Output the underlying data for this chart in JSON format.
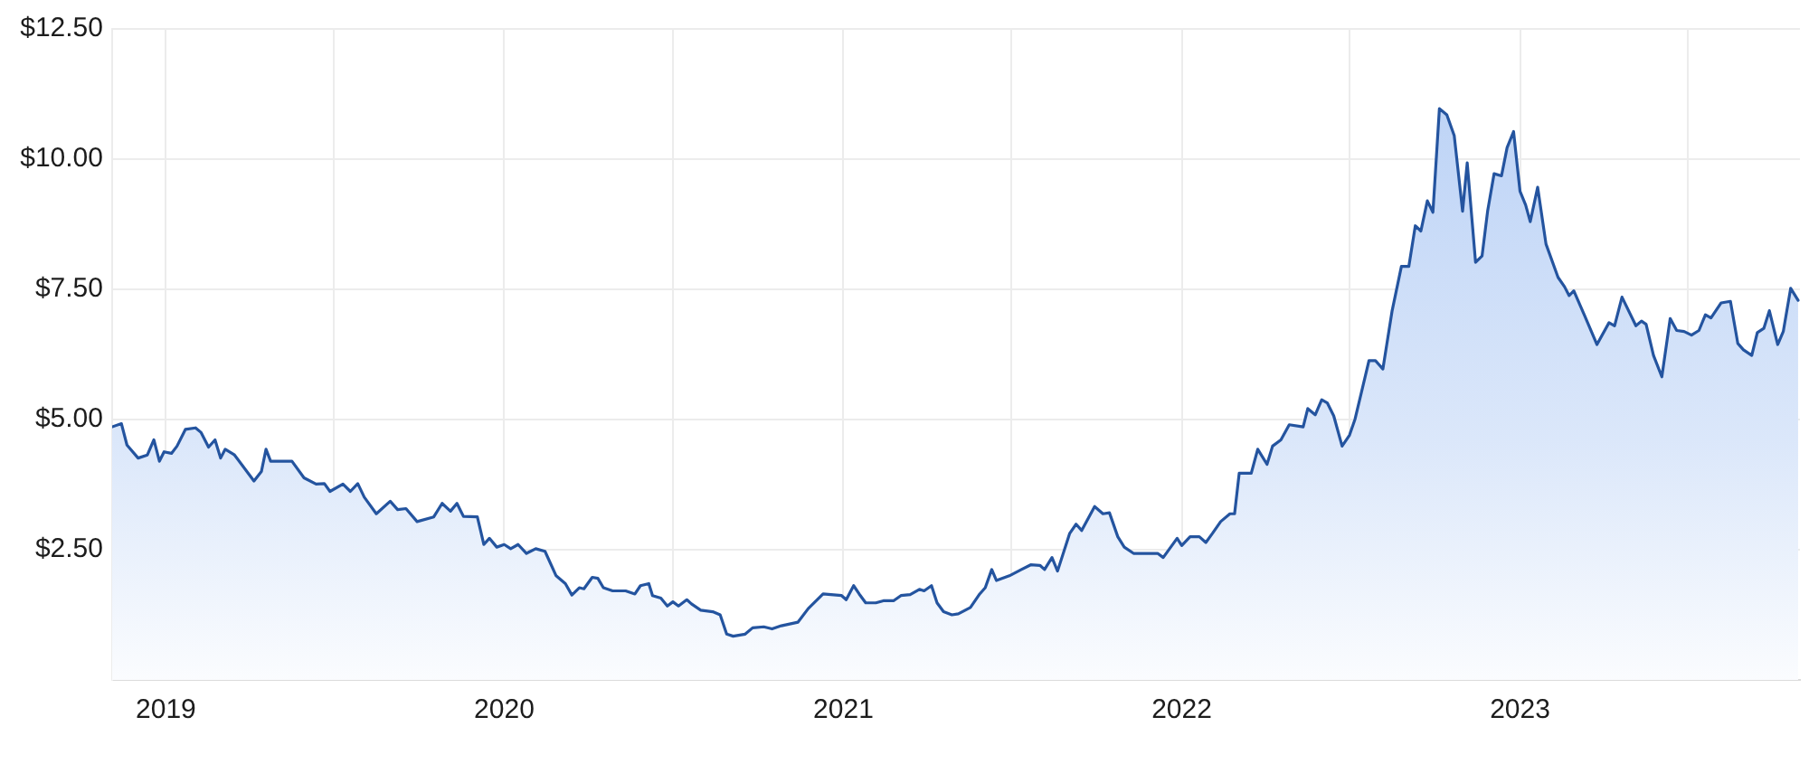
{
  "chart_data": {
    "type": "area",
    "color": "#24549f",
    "grid": true,
    "xlim": [
      "2018-11-04",
      "2023-10-30"
    ],
    "ylim": [
      0,
      12.5
    ],
    "xticks": [
      "2019",
      {
        "value": "2019-07",
        "label": null
      },
      "2020",
      {
        "value": "2020-07",
        "label": null
      },
      "2021",
      {
        "value": "2021-07",
        "label": null
      },
      "2022",
      {
        "value": "2022-07",
        "label": null
      },
      "2023",
      {
        "value": "2023-07",
        "label": null
      }
    ],
    "yticks": [
      {
        "value": 2.5,
        "label": "$2.50"
      },
      {
        "value": 5,
        "label": "$5.00"
      },
      {
        "value": 7.5,
        "label": "$7.50"
      },
      {
        "value": 10,
        "label": "$10.00"
      },
      {
        "value": 12.5,
        "label": "$12.50"
      }
    ],
    "x": [
      "2018-11-04",
      "2018-11-14",
      "2018-11-20",
      "2018-12-02",
      "2018-12-12",
      "2018-12-19",
      "2018-12-25",
      "2018-12-30",
      "2019-01-07",
      "2019-01-13",
      "2019-01-22",
      "2019-02-02",
      "2019-02-08",
      "2019-02-16",
      "2019-02-23",
      "2019-03-01",
      "2019-03-06",
      "2019-03-16",
      "2019-04-06",
      "2019-04-14",
      "2019-04-19",
      "2019-04-24",
      "2019-05-17",
      "2019-05-30",
      "2019-06-12",
      "2019-06-21",
      "2019-06-27",
      "2019-07-11",
      "2019-07-19",
      "2019-07-27",
      "2019-08-03",
      "2019-08-16",
      "2019-08-31",
      "2019-09-08",
      "2019-09-17",
      "2019-09-29",
      "2019-10-17",
      "2019-10-26",
      "2019-11-04",
      "2019-11-11",
      "2019-11-18",
      "2019-12-03",
      "2019-12-10",
      "2019-12-16",
      "2019-12-24",
      "2020-01-01",
      "2020-01-08",
      "2020-01-16",
      "2020-01-25",
      "2020-02-04",
      "2020-02-14",
      "2020-02-26",
      "2020-03-07",
      "2020-03-14",
      "2020-03-22",
      "2020-03-27",
      "2020-04-05",
      "2020-04-11",
      "2020-04-17",
      "2020-04-27",
      "2020-05-11",
      "2020-05-21",
      "2020-05-27",
      "2020-06-05",
      "2020-06-09",
      "2020-06-18",
      "2020-06-25",
      "2020-07-01",
      "2020-07-07",
      "2020-07-16",
      "2020-07-21",
      "2020-07-31",
      "2020-08-13",
      "2020-08-21",
      "2020-08-28",
      "2020-09-04",
      "2020-09-17",
      "2020-09-25",
      "2020-10-07",
      "2020-10-16",
      "2020-10-26",
      "2020-11-13",
      "2020-11-24",
      "2020-12-10",
      "2020-12-30",
      "2021-01-04",
      "2021-01-12",
      "2021-01-18",
      "2021-01-25",
      "2021-02-05",
      "2021-02-13",
      "2021-02-24",
      "2021-03-04",
      "2021-03-14",
      "2021-03-24",
      "2021-03-29",
      "2021-04-06",
      "2021-04-12",
      "2021-04-19",
      "2021-04-28",
      "2021-05-05",
      "2021-05-18",
      "2021-05-28",
      "2021-06-03",
      "2021-06-10",
      "2021-06-15",
      "2021-06-29",
      "2021-07-12",
      "2021-07-22",
      "2021-08-01",
      "2021-08-06",
      "2021-08-14",
      "2021-08-20",
      "2021-09-02",
      "2021-09-09",
      "2021-09-15",
      "2021-09-29",
      "2021-10-08",
      "2021-10-15",
      "2021-10-24",
      "2021-10-31",
      "2021-11-10",
      "2021-11-26",
      "2021-12-06",
      "2021-12-12",
      "2021-12-27",
      "2022-01-01",
      "2022-01-10",
      "2022-01-20",
      "2022-01-27",
      "2022-02-03",
      "2022-02-12",
      "2022-02-22",
      "2022-02-27",
      "2022-03-04",
      "2022-03-17",
      "2022-03-24",
      "2022-04-03",
      "2022-04-09",
      "2022-04-18",
      "2022-04-27",
      "2022-05-12",
      "2022-05-17",
      "2022-05-25",
      "2022-06-01",
      "2022-06-07",
      "2022-06-14",
      "2022-06-23",
      "2022-07-01",
      "2022-07-07",
      "2022-07-14",
      "2022-07-22",
      "2022-07-29",
      "2022-08-06",
      "2022-08-16",
      "2022-08-26",
      "2022-09-03",
      "2022-09-10",
      "2022-09-16",
      "2022-09-23",
      "2022-09-29",
      "2022-10-06",
      "2022-10-14",
      "2022-10-22",
      "2022-10-31",
      "2022-11-05",
      "2022-11-14",
      "2022-11-21",
      "2022-11-27",
      "2022-12-04",
      "2022-12-12",
      "2022-12-18",
      "2022-12-25",
      "2023-01-01",
      "2023-01-07",
      "2023-01-12",
      "2023-01-20",
      "2023-01-29",
      "2023-02-11",
      "2023-02-18",
      "2023-02-23",
      "2023-02-28",
      "2023-03-12",
      "2023-03-25",
      "2023-04-07",
      "2023-04-13",
      "2023-04-21",
      "2023-05-06",
      "2023-05-12",
      "2023-05-17",
      "2023-05-25",
      "2023-06-03",
      "2023-06-12",
      "2023-06-19",
      "2023-06-27",
      "2023-07-05",
      "2023-07-13",
      "2023-07-20",
      "2023-07-26",
      "2023-08-06",
      "2023-08-16",
      "2023-08-24",
      "2023-08-30",
      "2023-09-08",
      "2023-09-14",
      "2023-09-21",
      "2023-09-27",
      "2023-10-06",
      "2023-10-12",
      "2023-10-20",
      "2023-10-28"
    ],
    "values": [
      4.86,
      4.92,
      4.51,
      4.26,
      4.32,
      4.61,
      4.2,
      4.38,
      4.35,
      4.49,
      4.81,
      4.84,
      4.75,
      4.47,
      4.61,
      4.26,
      4.43,
      4.32,
      3.82,
      4.0,
      4.43,
      4.2,
      4.2,
      3.88,
      3.76,
      3.77,
      3.62,
      3.76,
      3.62,
      3.77,
      3.51,
      3.19,
      3.43,
      3.27,
      3.29,
      3.04,
      3.13,
      3.39,
      3.24,
      3.39,
      3.14,
      3.13,
      2.6,
      2.72,
      2.55,
      2.6,
      2.52,
      2.6,
      2.43,
      2.52,
      2.47,
      2.0,
      1.85,
      1.63,
      1.77,
      1.75,
      1.97,
      1.95,
      1.77,
      1.71,
      1.71,
      1.65,
      1.81,
      1.85,
      1.62,
      1.57,
      1.42,
      1.5,
      1.42,
      1.54,
      1.46,
      1.34,
      1.31,
      1.25,
      0.88,
      0.84,
      0.88,
      1.0,
      1.02,
      0.98,
      1.04,
      1.11,
      1.37,
      1.65,
      1.62,
      1.54,
      1.81,
      1.65,
      1.48,
      1.48,
      1.52,
      1.52,
      1.62,
      1.64,
      1.74,
      1.71,
      1.81,
      1.48,
      1.31,
      1.25,
      1.27,
      1.39,
      1.65,
      1.77,
      2.12,
      1.91,
      2.0,
      2.12,
      2.21,
      2.2,
      2.12,
      2.35,
      2.09,
      2.81,
      2.99,
      2.87,
      3.33,
      3.19,
      3.21,
      2.75,
      2.55,
      2.43,
      2.43,
      2.43,
      2.35,
      2.72,
      2.58,
      2.75,
      2.75,
      2.64,
      2.81,
      3.04,
      3.19,
      3.19,
      3.97,
      3.97,
      4.43,
      4.14,
      4.49,
      4.61,
      4.9,
      4.86,
      5.21,
      5.09,
      5.38,
      5.32,
      5.07,
      4.49,
      4.7,
      5.01,
      5.53,
      6.13,
      6.13,
      5.97,
      7.09,
      7.94,
      7.94,
      8.72,
      8.62,
      9.2,
      8.98,
      10.97,
      10.85,
      10.45,
      9.0,
      9.93,
      8.02,
      8.14,
      9.0,
      9.72,
      9.68,
      10.22,
      10.53,
      9.38,
      9.12,
      8.8,
      9.46,
      8.37,
      7.73,
      7.55,
      7.38,
      7.47,
      6.98,
      6.44,
      6.86,
      6.8,
      7.35,
      6.8,
      6.89,
      6.83,
      6.23,
      5.82,
      6.94,
      6.71,
      6.69,
      6.62,
      6.71,
      7.01,
      6.95,
      7.24,
      7.27,
      6.46,
      6.34,
      6.23,
      6.67,
      6.75,
      7.09,
      6.44,
      6.69,
      7.52,
      7.29
    ]
  }
}
